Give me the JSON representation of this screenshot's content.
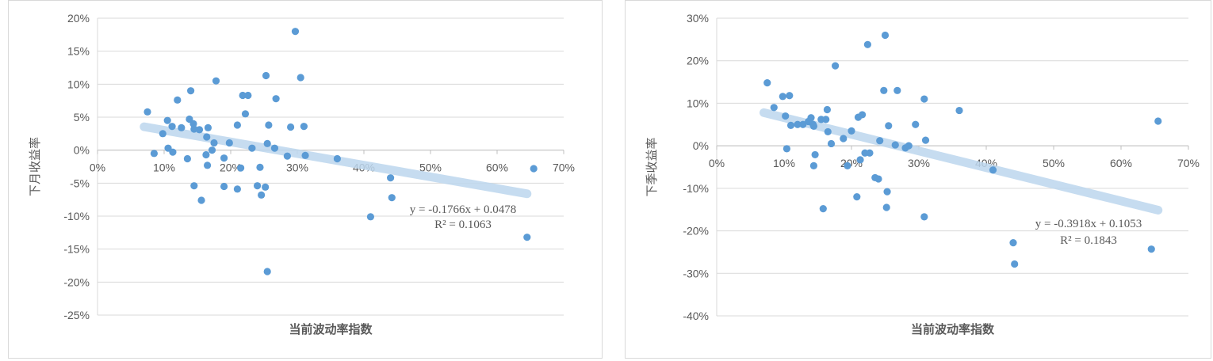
{
  "chart_data": [
    {
      "type": "scatter",
      "title": "",
      "xlabel": "当前波动率指数",
      "ylabel": "下月收益率",
      "xlim": [
        0,
        0.7
      ],
      "ylim": [
        -0.25,
        0.2
      ],
      "x_ticks": [
        "0%",
        "10%",
        "20%",
        "30%",
        "40%",
        "50%",
        "60%",
        "70%"
      ],
      "y_ticks": [
        "20%",
        "15%",
        "10%",
        "5%",
        "0%",
        "-5%",
        "-10%",
        "-15%",
        "-20%",
        "-25%"
      ],
      "grid": "horizontal",
      "point_color": "#5b9bd5",
      "trend_color": "#bdd7ee",
      "trendline": {
        "slope": -0.1766,
        "intercept": 0.0478,
        "x_range": [
          0.07,
          0.645
        ]
      },
      "equation_text": "y = -0.1766x + 0.0478",
      "r2_text": "R² = 0.1063",
      "points": [
        [
          0.075,
          0.058
        ],
        [
          0.085,
          -0.005
        ],
        [
          0.098,
          0.025
        ],
        [
          0.105,
          0.045
        ],
        [
          0.106,
          0.003
        ],
        [
          0.112,
          0.036
        ],
        [
          0.113,
          -0.003
        ],
        [
          0.12,
          0.076
        ],
        [
          0.126,
          0.034
        ],
        [
          0.135,
          -0.013
        ],
        [
          0.138,
          0.047
        ],
        [
          0.14,
          0.09
        ],
        [
          0.144,
          0.04
        ],
        [
          0.145,
          0.032
        ],
        [
          0.145,
          -0.054
        ],
        [
          0.153,
          0.031
        ],
        [
          0.156,
          -0.076
        ],
        [
          0.163,
          -0.007
        ],
        [
          0.164,
          0.02
        ],
        [
          0.165,
          -0.023
        ],
        [
          0.166,
          0.034
        ],
        [
          0.172,
          0.0
        ],
        [
          0.175,
          0.011
        ],
        [
          0.178,
          0.105
        ],
        [
          0.19,
          -0.012
        ],
        [
          0.19,
          -0.055
        ],
        [
          0.198,
          0.011
        ],
        [
          0.21,
          0.038
        ],
        [
          0.21,
          -0.059
        ],
        [
          0.215,
          -0.027
        ],
        [
          0.218,
          0.083
        ],
        [
          0.222,
          0.055
        ],
        [
          0.226,
          0.083
        ],
        [
          0.232,
          0.003
        ],
        [
          0.24,
          -0.054
        ],
        [
          0.244,
          -0.026
        ],
        [
          0.246,
          -0.068
        ],
        [
          0.252,
          -0.056
        ],
        [
          0.253,
          0.113
        ],
        [
          0.255,
          0.01
        ],
        [
          0.257,
          0.038
        ],
        [
          0.255,
          -0.184
        ],
        [
          0.266,
          0.003
        ],
        [
          0.268,
          0.078
        ],
        [
          0.285,
          -0.009
        ],
        [
          0.29,
          0.035
        ],
        [
          0.297,
          0.18
        ],
        [
          0.305,
          0.11
        ],
        [
          0.31,
          0.036
        ],
        [
          0.312,
          -0.008
        ],
        [
          0.36,
          -0.013
        ],
        [
          0.41,
          -0.101
        ],
        [
          0.44,
          -0.042
        ],
        [
          0.442,
          -0.072
        ],
        [
          0.645,
          -0.132
        ],
        [
          0.655,
          -0.028
        ]
      ]
    },
    {
      "type": "scatter",
      "title": "",
      "xlabel": "当前波动率指数",
      "ylabel": "下季收益率",
      "xlim": [
        0,
        0.7
      ],
      "ylim": [
        -0.4,
        0.3
      ],
      "x_ticks": [
        "0%",
        "10%",
        "20%",
        "30%",
        "40%",
        "50%",
        "60%",
        "70%"
      ],
      "y_ticks": [
        "30%",
        "20%",
        "10%",
        "0%",
        "-10%",
        "-20%",
        "-30%",
        "-40%"
      ],
      "grid": "horizontal",
      "point_color": "#5b9bd5",
      "trend_color": "#bdd7ee",
      "trendline": {
        "slope": -0.3918,
        "intercept": 0.1053,
        "x_range": [
          0.07,
          0.655
        ]
      },
      "equation_text": "y = -0.3918x + 0.1053",
      "r2_text": "R² = 0.1843",
      "points": [
        [
          0.075,
          0.148
        ],
        [
          0.085,
          0.09
        ],
        [
          0.098,
          0.116
        ],
        [
          0.102,
          0.07
        ],
        [
          0.104,
          -0.007
        ],
        [
          0.108,
          0.118
        ],
        [
          0.11,
          0.048
        ],
        [
          0.12,
          0.05
        ],
        [
          0.128,
          0.05
        ],
        [
          0.136,
          0.057
        ],
        [
          0.14,
          0.066
        ],
        [
          0.143,
          0.05
        ],
        [
          0.144,
          0.046
        ],
        [
          0.144,
          -0.047
        ],
        [
          0.146,
          -0.021
        ],
        [
          0.155,
          0.062
        ],
        [
          0.158,
          -0.148
        ],
        [
          0.162,
          0.062
        ],
        [
          0.164,
          0.085
        ],
        [
          0.165,
          0.033
        ],
        [
          0.17,
          0.005
        ],
        [
          0.176,
          0.188
        ],
        [
          0.188,
          0.017
        ],
        [
          0.194,
          -0.047
        ],
        [
          0.2,
          0.035
        ],
        [
          0.208,
          -0.12
        ],
        [
          0.21,
          0.067
        ],
        [
          0.213,
          -0.033
        ],
        [
          0.216,
          0.073
        ],
        [
          0.22,
          -0.017
        ],
        [
          0.224,
          0.238
        ],
        [
          0.227,
          -0.017
        ],
        [
          0.235,
          -0.075
        ],
        [
          0.24,
          -0.078
        ],
        [
          0.242,
          0.012
        ],
        [
          0.248,
          0.13
        ],
        [
          0.25,
          0.26
        ],
        [
          0.252,
          -0.145
        ],
        [
          0.253,
          -0.108
        ],
        [
          0.255,
          0.047
        ],
        [
          0.265,
          0.002
        ],
        [
          0.268,
          0.13
        ],
        [
          0.28,
          -0.005
        ],
        [
          0.285,
          0.0
        ],
        [
          0.295,
          0.05
        ],
        [
          0.308,
          0.11
        ],
        [
          0.308,
          -0.167
        ],
        [
          0.31,
          0.013
        ],
        [
          0.36,
          0.083
        ],
        [
          0.41,
          -0.057
        ],
        [
          0.44,
          -0.228
        ],
        [
          0.442,
          -0.278
        ],
        [
          0.645,
          -0.243
        ],
        [
          0.655,
          0.058
        ]
      ]
    }
  ]
}
